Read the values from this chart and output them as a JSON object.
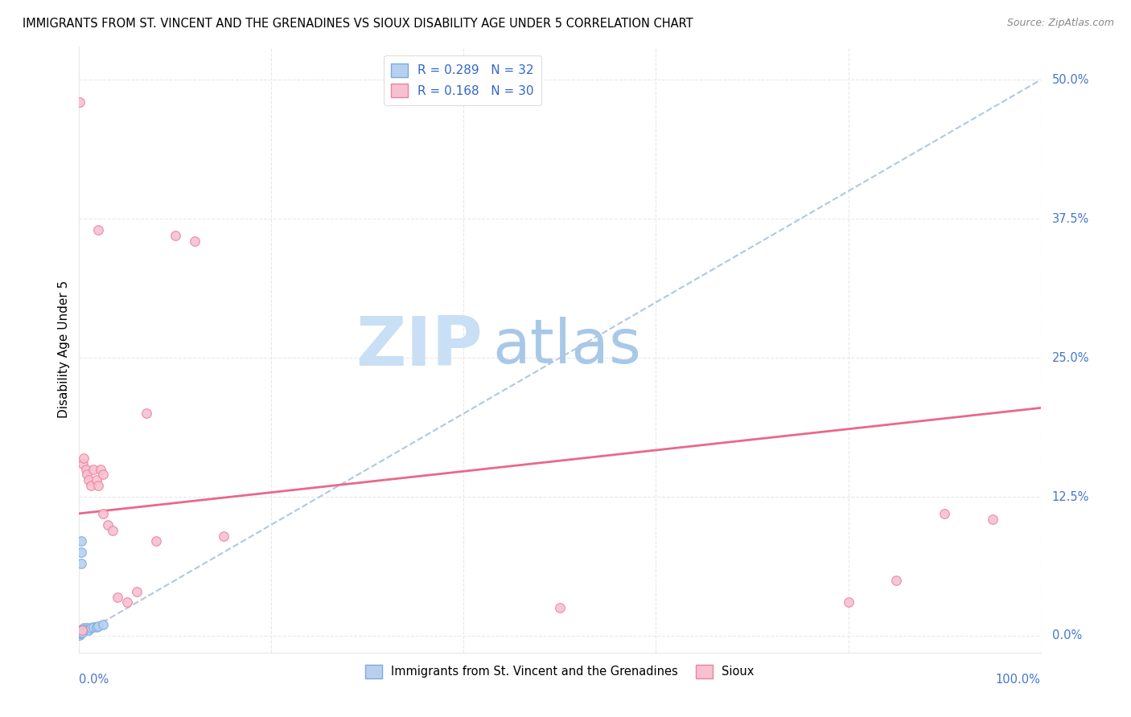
{
  "title": "IMMIGRANTS FROM ST. VINCENT AND THE GRENADINES VS SIOUX DISABILITY AGE UNDER 5 CORRELATION CHART",
  "source": "Source: ZipAtlas.com",
  "ylabel": "Disability Age Under 5",
  "ytick_labels": [
    "0.0%",
    "12.5%",
    "25.0%",
    "37.5%",
    "50.0%"
  ],
  "ytick_values": [
    0.0,
    12.5,
    25.0,
    37.5,
    50.0
  ],
  "xlim": [
    0.0,
    100.0
  ],
  "ylim": [
    -1.5,
    53.0
  ],
  "watermark_zip": "ZIP",
  "watermark_atlas": "atlas",
  "legend_r1": "R = 0.289",
  "legend_n1": "N = 32",
  "legend_r2": "R = 0.168",
  "legend_n2": "N = 30",
  "blue_scatter_x": [
    0.05,
    0.07,
    0.08,
    0.09,
    0.1,
    0.11,
    0.12,
    0.13,
    0.15,
    0.16,
    0.18,
    0.2,
    0.22,
    0.25,
    0.28,
    0.3,
    0.35,
    0.4,
    0.45,
    0.5,
    0.6,
    0.7,
    0.8,
    0.9,
    1.0,
    1.2,
    1.5,
    1.8,
    2.0,
    2.5,
    0.25,
    0.3
  ],
  "blue_scatter_y": [
    0.2,
    0.3,
    0.1,
    0.4,
    0.2,
    0.5,
    0.3,
    0.4,
    0.3,
    0.5,
    0.4,
    0.3,
    6.5,
    7.5,
    0.5,
    0.4,
    0.6,
    0.5,
    0.7,
    0.6,
    0.5,
    0.6,
    0.7,
    0.6,
    0.5,
    0.7,
    0.8,
    0.8,
    0.9,
    1.0,
    8.5,
    0.3
  ],
  "pink_scatter_x": [
    0.05,
    0.4,
    0.5,
    0.7,
    0.8,
    1.0,
    1.2,
    1.5,
    1.8,
    2.0,
    2.2,
    2.5,
    3.0,
    3.5,
    4.0,
    5.0,
    6.0,
    7.0,
    10.0,
    12.0,
    15.0,
    50.0,
    80.0,
    85.0,
    90.0,
    95.0,
    2.0,
    2.5,
    8.0,
    0.3
  ],
  "pink_scatter_y": [
    48.0,
    15.5,
    16.0,
    15.0,
    14.5,
    14.0,
    13.5,
    15.0,
    14.0,
    13.5,
    15.0,
    14.5,
    10.0,
    9.5,
    3.5,
    3.0,
    4.0,
    20.0,
    36.0,
    35.5,
    9.0,
    2.5,
    3.0,
    5.0,
    11.0,
    10.5,
    36.5,
    11.0,
    8.5,
    0.5
  ],
  "blue_line_x": [
    0.0,
    100.0
  ],
  "blue_line_y": [
    0.0,
    50.0
  ],
  "pink_line_x": [
    0.0,
    100.0
  ],
  "pink_line_y": [
    11.0,
    20.5
  ],
  "scatter_size": 70,
  "blue_fill": "#b8d0f0",
  "blue_edge": "#7aabdc",
  "pink_fill": "#f8c0d0",
  "pink_edge": "#e882a0",
  "dashed_line_color": "#b0c8e0",
  "solid_line_color": "#e8698a",
  "legend_text_color": "#3366cc",
  "watermark_zip_color": "#c8dff5",
  "watermark_atlas_color": "#a8c8e8",
  "grid_color": "#e8e8e8",
  "title_fontsize": 10.5,
  "right_label_color": "#4477cc",
  "bottom_label_color": "#4477cc",
  "source_color": "#888888"
}
